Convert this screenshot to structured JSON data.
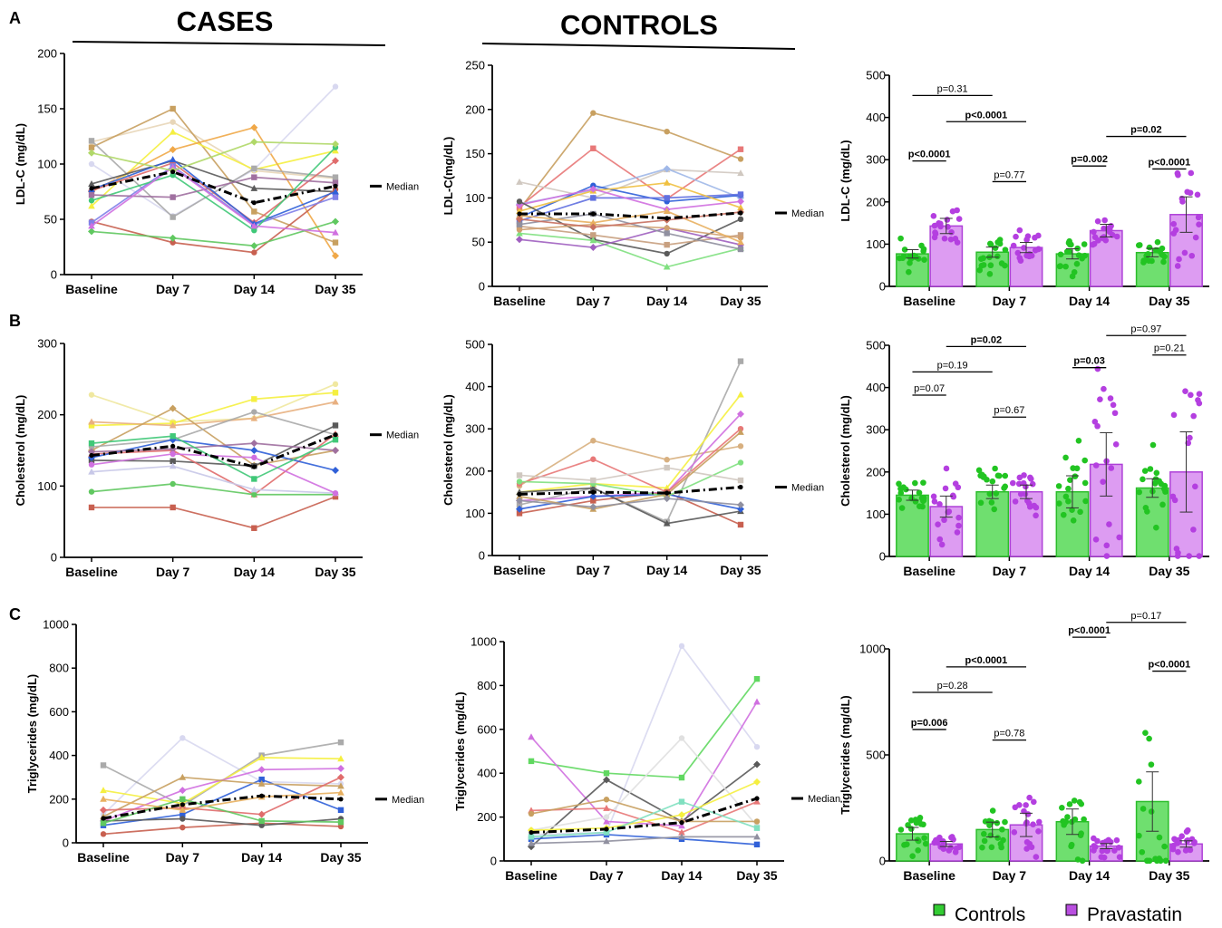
{
  "headers": {
    "cases": "CASES",
    "controls": "CONTROLS"
  },
  "row_labels": [
    "A",
    "B",
    "C"
  ],
  "median_label": "Median",
  "legend": [
    {
      "label": "Controls",
      "color": "#33cc33"
    },
    {
      "label": "Pravastatin",
      "color": "#b94fe0"
    }
  ],
  "chart_data": [
    {
      "id": "A-cases",
      "type": "line",
      "ylabel": "LDL-C (mg/dL)",
      "ylim": [
        0,
        200
      ],
      "yticks": [
        0,
        50,
        100,
        150,
        200
      ],
      "categories": [
        "Baseline",
        "Day 7",
        "Day 14",
        "Day 35"
      ],
      "median": [
        78,
        93,
        65,
        80
      ],
      "series": [
        {
          "color": "#e8d6b8",
          "values": [
            120,
            138,
            94,
            87
          ]
        },
        {
          "color": "#c8a060",
          "values": [
            115,
            150,
            57,
            29
          ]
        },
        {
          "color": "#f5ef40",
          "values": [
            62,
            129,
            95,
            112
          ]
        },
        {
          "color": "#f0a848",
          "values": [
            75,
            113,
            133,
            17
          ]
        },
        {
          "color": "#d8d8f0",
          "values": [
            100,
            53,
            95,
            170
          ]
        },
        {
          "color": "#aaaaaa",
          "values": [
            121,
            52,
            96,
            88
          ]
        },
        {
          "color": "#5a5a5a",
          "values": [
            82,
            103,
            78,
            75
          ]
        },
        {
          "color": "#e06c6c",
          "values": [
            76,
            101,
            47,
            103
          ]
        },
        {
          "color": "#c86050",
          "values": [
            48,
            29,
            20,
            77
          ]
        },
        {
          "color": "#8080e8",
          "values": [
            47,
            98,
            45,
            70
          ]
        },
        {
          "color": "#3060d8",
          "values": [
            77,
            104,
            46,
            75
          ]
        },
        {
          "color": "#60c860",
          "values": [
            39,
            33,
            26,
            48
          ]
        },
        {
          "color": "#40c878",
          "values": [
            67,
            90,
            40,
            115
          ]
        },
        {
          "color": "#a070a0",
          "values": [
            72,
            70,
            88,
            83
          ]
        },
        {
          "color": "#d070e0",
          "values": [
            44,
            97,
            44,
            38
          ]
        },
        {
          "color": "#b0d868",
          "values": [
            110,
            94,
            120,
            118
          ]
        }
      ]
    },
    {
      "id": "A-controls",
      "type": "line",
      "ylabel": "LDL-C(mg/dL)",
      "ylim": [
        0,
        250
      ],
      "yticks": [
        0,
        50,
        100,
        150,
        200,
        250
      ],
      "categories": [
        "Baseline",
        "Day 7",
        "Day 14",
        "Day 35"
      ],
      "median": [
        82,
        82,
        77,
        83
      ],
      "series": [
        {
          "color": "#c8a060",
          "values": [
            87,
            196,
            175,
            144
          ]
        },
        {
          "color": "#e87878",
          "values": [
            90,
            156,
            99,
            155
          ]
        },
        {
          "color": "#d0c8c0",
          "values": [
            118,
            100,
            132,
            128
          ]
        },
        {
          "color": "#a0b8e8",
          "values": [
            93,
            109,
            133,
            100
          ]
        },
        {
          "color": "#3060d8",
          "values": [
            78,
            114,
            96,
            103
          ]
        },
        {
          "color": "#6070e0",
          "values": [
            74,
            100,
            100,
            104
          ]
        },
        {
          "color": "#f0c040",
          "values": [
            85,
            108,
            117,
            89
          ]
        },
        {
          "color": "#d070e0",
          "values": [
            92,
            110,
            87,
            96
          ]
        },
        {
          "color": "#5a5a5a",
          "values": [
            96,
            53,
            37,
            76
          ]
        },
        {
          "color": "#c8a080",
          "values": [
            68,
            58,
            47,
            58
          ]
        },
        {
          "color": "#80e080",
          "values": [
            60,
            52,
            22,
            43
          ]
        },
        {
          "color": "#a060c0",
          "values": [
            53,
            44,
            66,
            47
          ]
        },
        {
          "color": "#d0a070",
          "values": [
            64,
            70,
            66,
            55
          ]
        },
        {
          "color": "#9090a0",
          "values": [
            70,
            82,
            60,
            42
          ]
        },
        {
          "color": "#e8b060",
          "values": [
            80,
            72,
            85,
            50
          ]
        },
        {
          "color": "#c87060",
          "values": [
            76,
            67,
            75,
            84
          ]
        }
      ]
    },
    {
      "id": "A-bars",
      "type": "bar",
      "ylabel": "LDL-C (mg/dL)",
      "ylim": [
        0,
        500
      ],
      "yticks": [
        0,
        100,
        200,
        300,
        400,
        500
      ],
      "categories": [
        "Baseline",
        "Day 7",
        "Day 14",
        "Day 35"
      ],
      "series": [
        {
          "name": "Controls",
          "values": [
            77,
            81,
            77,
            80
          ],
          "errors": [
            10,
            12,
            12,
            10
          ]
        },
        {
          "name": "Pravastatin",
          "values": [
            143,
            92,
            132,
            170
          ],
          "errors": [
            18,
            12,
            15,
            42
          ]
        }
      ],
      "annotations": [
        {
          "text": "p<0.0001",
          "bold": true
        },
        {
          "text": "p=0.31",
          "bold": false
        },
        {
          "text": "p<0.0001",
          "bold": true
        },
        {
          "text": "p=0.77",
          "bold": false
        },
        {
          "text": "p=0.002",
          "bold": true
        },
        {
          "text": "p=0.02",
          "bold": true
        },
        {
          "text": "p<0.0001",
          "bold": true
        }
      ]
    },
    {
      "id": "B-cases",
      "type": "line",
      "ylabel": "Cholesterol (mg/dL)",
      "ylim": [
        0,
        300
      ],
      "yticks": [
        0,
        100,
        200,
        300
      ],
      "categories": [
        "Baseline",
        "Day 7",
        "Day 14",
        "Day 35"
      ],
      "median": [
        143,
        156,
        127,
        172
      ],
      "series": [
        {
          "color": "#f0e8a0",
          "values": [
            228,
            190,
            195,
            243
          ]
        },
        {
          "color": "#f5ef40",
          "values": [
            185,
            188,
            222,
            231
          ]
        },
        {
          "color": "#e8b080",
          "values": [
            190,
            185,
            195,
            218
          ]
        },
        {
          "color": "#c8a060",
          "values": [
            150,
            209,
            129,
            150
          ]
        },
        {
          "color": "#aaaaaa",
          "values": [
            155,
            165,
            204,
            172
          ]
        },
        {
          "color": "#5a5a5a",
          "values": [
            136,
            135,
            128,
            185
          ]
        },
        {
          "color": "#e06c6c",
          "values": [
            145,
            150,
            88,
            173
          ]
        },
        {
          "color": "#3060d8",
          "values": [
            140,
            165,
            150,
            122
          ]
        },
        {
          "color": "#60c860",
          "values": [
            92,
            103,
            88,
            88
          ]
        },
        {
          "color": "#c86050",
          "values": [
            70,
            70,
            41,
            85
          ]
        },
        {
          "color": "#c8c8e8",
          "values": [
            120,
            128,
            95,
            90
          ]
        },
        {
          "color": "#a070a0",
          "values": [
            148,
            152,
            160,
            150
          ]
        },
        {
          "color": "#d070e0",
          "values": [
            130,
            145,
            140,
            90
          ]
        },
        {
          "color": "#40c878",
          "values": [
            160,
            170,
            110,
            165
          ]
        }
      ]
    },
    {
      "id": "B-controls",
      "type": "line",
      "ylabel": "Cholesterol (mg/dL)",
      "ylim": [
        0,
        500
      ],
      "yticks": [
        0,
        100,
        200,
        300,
        400,
        500
      ],
      "categories": [
        "Baseline",
        "Day 7",
        "Day 14",
        "Day 35"
      ],
      "median": [
        145,
        150,
        148,
        162
      ],
      "series": [
        {
          "color": "#d8b080",
          "values": [
            165,
            272,
            227,
            259
          ]
        },
        {
          "color": "#aaaaaa",
          "values": [
            120,
            160,
            80,
            460
          ]
        },
        {
          "color": "#f5ef40",
          "values": [
            150,
            170,
            160,
            381
          ]
        },
        {
          "color": "#d070e0",
          "values": [
            130,
            140,
            150,
            335
          ]
        },
        {
          "color": "#e87878",
          "values": [
            170,
            228,
            150,
            300
          ]
        },
        {
          "color": "#c86050",
          "values": [
            100,
            130,
            150,
            73
          ]
        },
        {
          "color": "#5a5a5a",
          "values": [
            150,
            160,
            76,
            105
          ]
        },
        {
          "color": "#3060d8",
          "values": [
            110,
            140,
            145,
            110
          ]
        },
        {
          "color": "#80e080",
          "values": [
            175,
            170,
            140,
            220
          ]
        },
        {
          "color": "#d0c8c0",
          "values": [
            190,
            178,
            208,
            178
          ]
        },
        {
          "color": "#c8a060",
          "values": [
            140,
            110,
            145,
            292
          ]
        },
        {
          "color": "#9090a0",
          "values": [
            130,
            115,
            135,
            120
          ]
        }
      ]
    },
    {
      "id": "B-bars",
      "type": "bar",
      "ylabel": "Cholesterol (mg/dL)",
      "ylim": [
        0,
        500
      ],
      "yticks": [
        0,
        100,
        200,
        300,
        400,
        500
      ],
      "categories": [
        "Baseline",
        "Day 7",
        "Day 14",
        "Day 35"
      ],
      "series": [
        {
          "name": "Controls",
          "values": [
            145,
            153,
            153,
            162
          ],
          "errors": [
            12,
            16,
            38,
            22
          ]
        },
        {
          "name": "Pravastatin",
          "values": [
            118,
            153,
            218,
            200
          ],
          "errors": [
            25,
            16,
            75,
            95
          ]
        }
      ],
      "annotations": [
        {
          "text": "p=0.07",
          "bold": false
        },
        {
          "text": "p=0.19",
          "bold": false
        },
        {
          "text": "p=0.02",
          "bold": true
        },
        {
          "text": "p=0.67",
          "bold": false
        },
        {
          "text": "p=0.03",
          "bold": true
        },
        {
          "text": "p=0.97",
          "bold": false
        },
        {
          "text": "p=0.21",
          "bold": false
        }
      ]
    },
    {
      "id": "C-cases",
      "type": "line",
      "ylabel": "Triglycerides (mg/dL)",
      "ylim": [
        0,
        1000
      ],
      "yticks": [
        0,
        200,
        400,
        600,
        800,
        1000
      ],
      "categories": [
        "Baseline",
        "Day 7",
        "Day 14",
        "Day 35"
      ],
      "median": [
        112,
        175,
        215,
        200
      ],
      "series": [
        {
          "color": "#d8d8f0",
          "values": [
            130,
            480,
            280,
            270
          ]
        },
        {
          "color": "#aaaaaa",
          "values": [
            355,
            170,
            400,
            460
          ]
        },
        {
          "color": "#f5ef40",
          "values": [
            240,
            180,
            390,
            385
          ]
        },
        {
          "color": "#d070e0",
          "values": [
            100,
            240,
            335,
            340
          ]
        },
        {
          "color": "#c86050",
          "values": [
            40,
            70,
            90,
            75
          ]
        },
        {
          "color": "#3060d8",
          "values": [
            80,
            130,
            290,
            150
          ]
        },
        {
          "color": "#c8a060",
          "values": [
            120,
            300,
            270,
            260
          ]
        },
        {
          "color": "#e06c6c",
          "values": [
            150,
            160,
            130,
            300
          ]
        },
        {
          "color": "#5a5a5a",
          "values": [
            100,
            110,
            80,
            110
          ]
        },
        {
          "color": "#60c860",
          "values": [
            90,
            200,
            100,
            95
          ]
        },
        {
          "color": "#e8b060",
          "values": [
            200,
            150,
            210,
            230
          ]
        }
      ]
    },
    {
      "id": "C-controls",
      "type": "line",
      "ylabel": "Triglycerides (mg/dL)",
      "ylim": [
        0,
        1000
      ],
      "yticks": [
        0,
        200,
        400,
        600,
        800,
        1000
      ],
      "categories": [
        "Baseline",
        "Day 7",
        "Day 14",
        "Day 35"
      ],
      "median": [
        130,
        145,
        175,
        285
      ],
      "series": [
        {
          "color": "#d8d8f0",
          "values": [
            120,
            130,
            980,
            520
          ]
        },
        {
          "color": "#60d860",
          "values": [
            455,
            400,
            380,
            830
          ]
        },
        {
          "color": "#d070e0",
          "values": [
            565,
            180,
            160,
            725
          ]
        },
        {
          "color": "#5a5a5a",
          "values": [
            65,
            370,
            180,
            440
          ]
        },
        {
          "color": "#e0e0e0",
          "values": [
            140,
            200,
            560,
            160
          ]
        },
        {
          "color": "#3060d8",
          "values": [
            100,
            120,
            100,
            75
          ]
        },
        {
          "color": "#e87878",
          "values": [
            230,
            240,
            130,
            270
          ]
        },
        {
          "color": "#f5ef40",
          "values": [
            140,
            150,
            210,
            360
          ]
        },
        {
          "color": "#c8a060",
          "values": [
            215,
            280,
            180,
            180
          ]
        },
        {
          "color": "#80e0c0",
          "values": [
            110,
            130,
            270,
            150
          ]
        },
        {
          "color": "#9090a0",
          "values": [
            80,
            90,
            110,
            110
          ]
        }
      ]
    },
    {
      "id": "C-bars",
      "type": "bar",
      "ylabel": "Triglycerides (mg/dL)",
      "ylim": [
        0,
        1000
      ],
      "yticks": [
        0,
        500,
        1000
      ],
      "categories": [
        "Baseline",
        "Day 7",
        "Day 14",
        "Day 35"
      ],
      "series": [
        {
          "name": "Controls",
          "values": [
            128,
            148,
            185,
            280
          ],
          "errors": [
            30,
            35,
            60,
            140
          ]
        },
        {
          "name": "Pravastatin",
          "values": [
            80,
            170,
            70,
            80
          ],
          "errors": [
            12,
            55,
            12,
            15
          ]
        }
      ],
      "annotations": [
        {
          "text": "p=0.006",
          "bold": true
        },
        {
          "text": "p=0.28",
          "bold": false
        },
        {
          "text": "p<0.0001",
          "bold": true
        },
        {
          "text": "p=0.78",
          "bold": false
        },
        {
          "text": "p<0.0001",
          "bold": true
        },
        {
          "text": "p=0.17",
          "bold": false
        },
        {
          "text": "p<0.0001",
          "bold": true
        }
      ]
    }
  ]
}
